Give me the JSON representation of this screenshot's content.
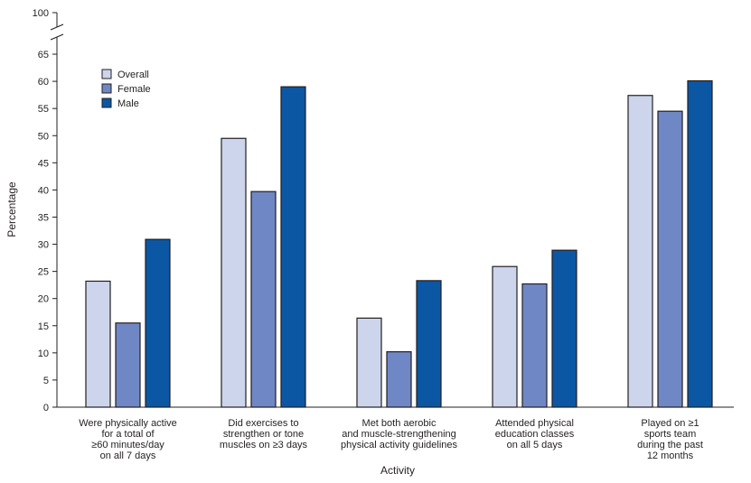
{
  "chart_data": {
    "type": "bar",
    "xlabel": "Activity",
    "ylabel": "Percentage",
    "ylim": [
      0,
      65
    ],
    "axis_break_top_label": "100",
    "yticks": [
      0,
      5,
      10,
      15,
      20,
      25,
      30,
      35,
      40,
      45,
      50,
      55,
      60,
      65
    ],
    "legend_position": "top-left",
    "categories": [
      [
        "Were physically active",
        "for a total of",
        "≥60 minutes/day",
        "on all 7 days"
      ],
      [
        "Did exercises to",
        "strengthen or tone",
        "muscles on ≥3 days"
      ],
      [
        "Met both aerobic",
        "and muscle-strengthening",
        "physical activity guidelines"
      ],
      [
        "Attended physical",
        "education classes",
        "on all 5 days"
      ],
      [
        "Played on ≥1",
        "sports team",
        "during the past",
        "12 months"
      ]
    ],
    "series": [
      {
        "name": "Overall",
        "color": "#cdd5ec",
        "values": [
          23.2,
          49.5,
          16.4,
          25.9,
          57.4
        ]
      },
      {
        "name": "Female",
        "color": "#6f87c4",
        "values": [
          15.5,
          39.7,
          10.2,
          22.7,
          54.5
        ]
      },
      {
        "name": "Male",
        "color": "#0b57a4",
        "values": [
          30.9,
          59.0,
          23.3,
          28.9,
          60.1
        ]
      }
    ]
  }
}
